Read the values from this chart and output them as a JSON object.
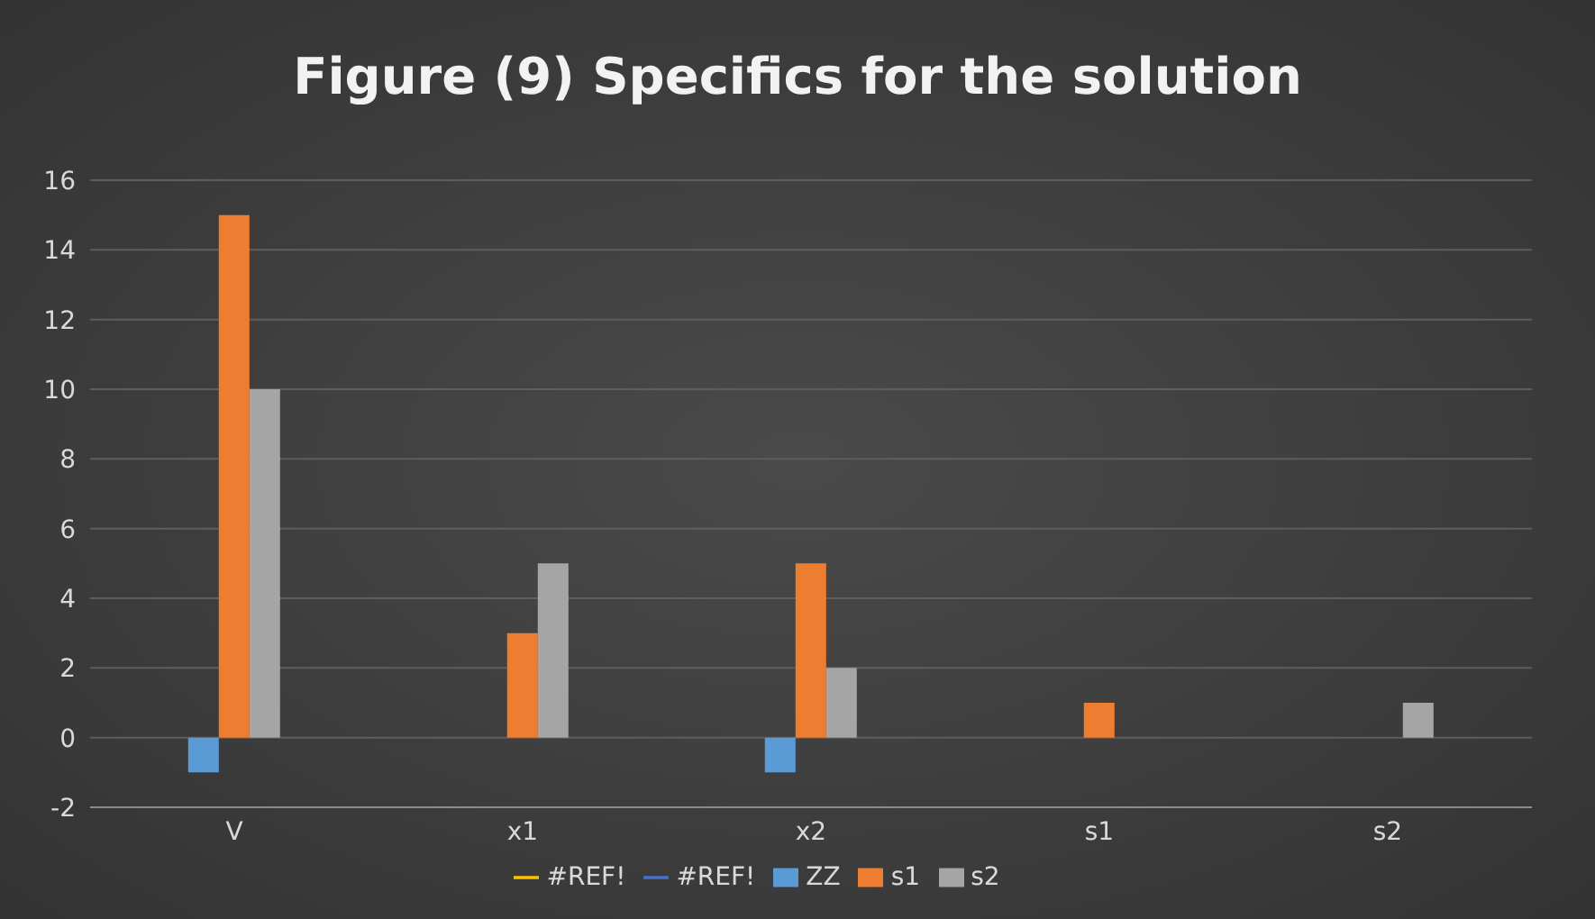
{
  "chart_data": {
    "type": "bar",
    "title": "Figure (9) Specifics for the solution",
    "categories": [
      "V",
      "x1",
      "x2",
      "s1",
      "s2"
    ],
    "series": [
      {
        "name": "ZZ",
        "color": "#5b9bd5",
        "values": [
          -1,
          null,
          -1,
          null,
          null
        ]
      },
      {
        "name": "s1",
        "color": "#ed7d31",
        "values": [
          15,
          3,
          5,
          1,
          null
        ]
      },
      {
        "name": "s2",
        "color": "#a5a5a5",
        "values": [
          10,
          5,
          2,
          null,
          1
        ]
      },
      {
        "name": "#REF!",
        "type": "line",
        "color": "#ffc000",
        "values": [
          null,
          null,
          null,
          null,
          null
        ]
      },
      {
        "name": "#REF!",
        "type": "line",
        "color": "#4472c4",
        "values": [
          null,
          null,
          null,
          null,
          null
        ]
      }
    ],
    "ylim": [
      -2,
      16
    ],
    "yticks": [
      -2,
      0,
      2,
      4,
      6,
      8,
      10,
      12,
      14,
      16
    ],
    "grid": "y",
    "legend": "bottom"
  }
}
